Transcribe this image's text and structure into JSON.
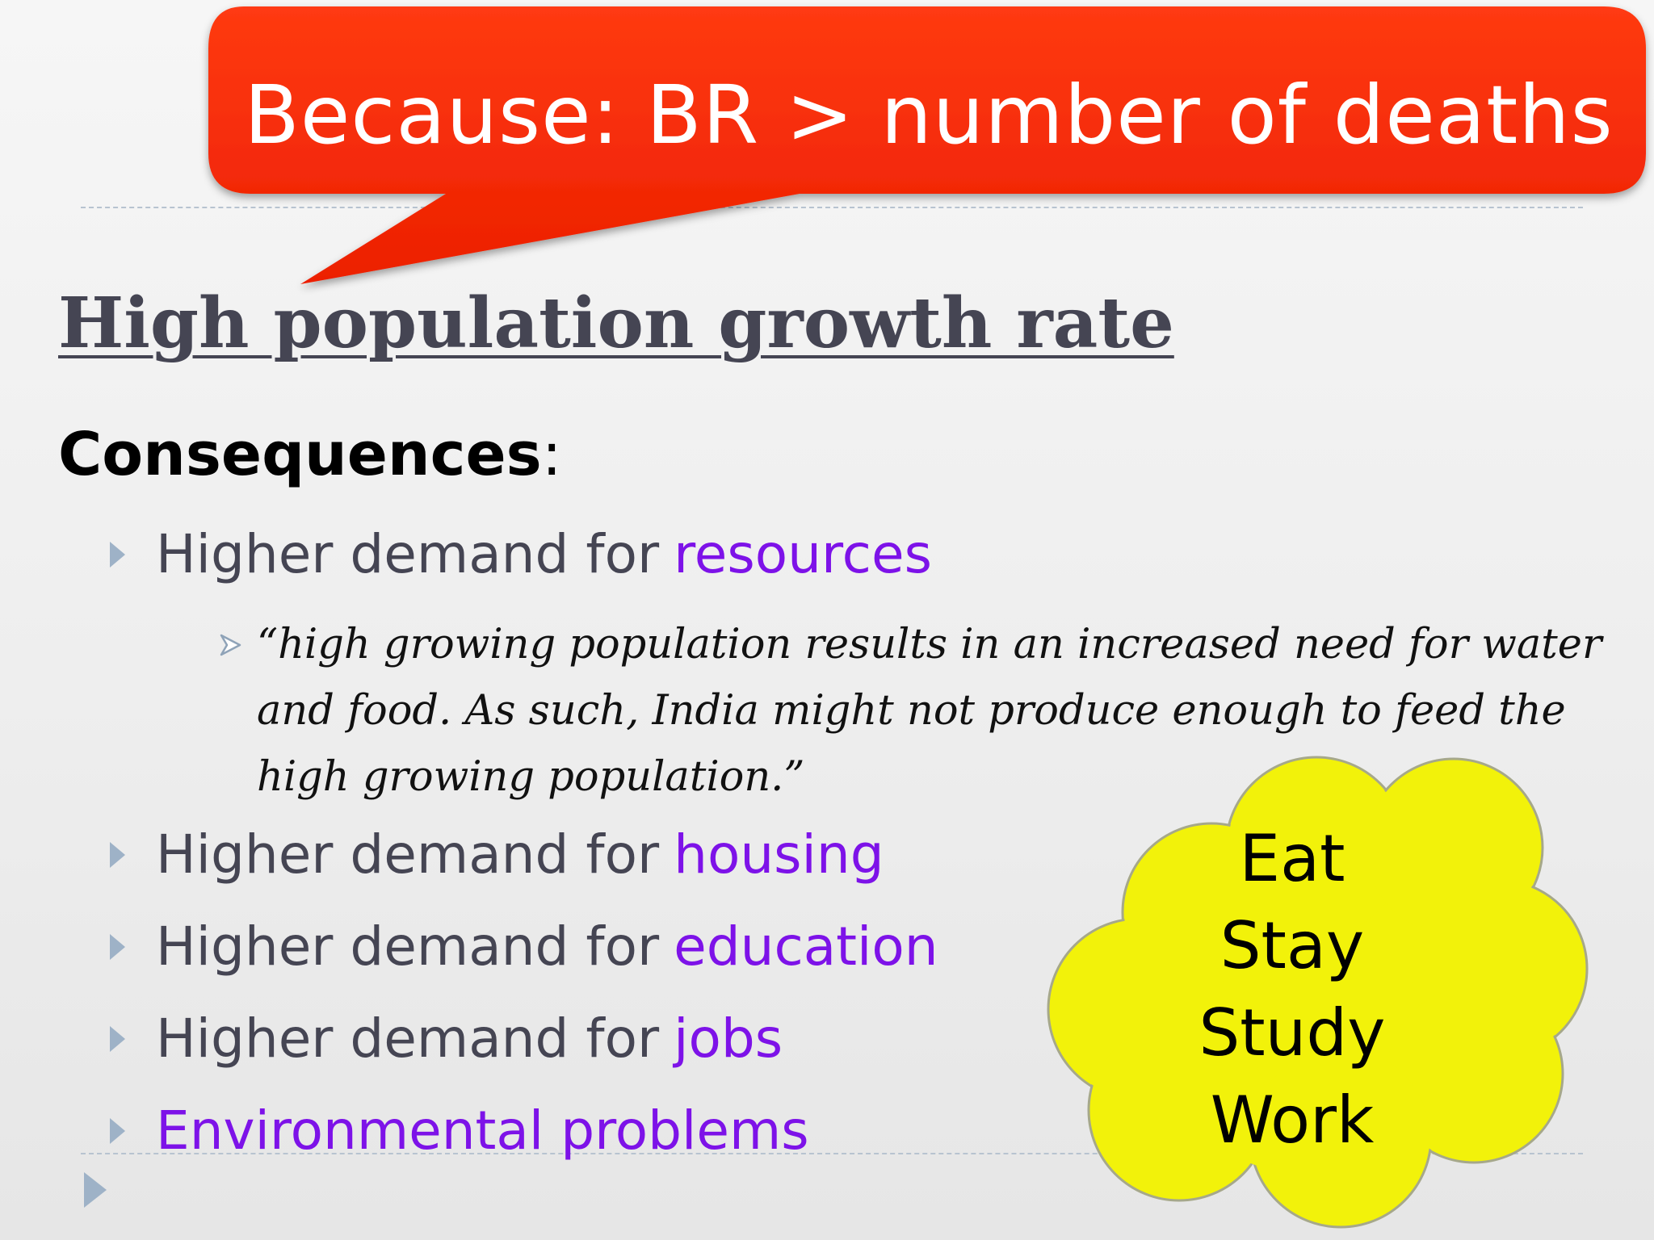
{
  "callout": {
    "text": "Because: BR > number of deaths"
  },
  "title": "High population growth rate",
  "subtitle": {
    "bold": "Consequences",
    "suffix": ":"
  },
  "bullets": [
    {
      "lead": "Higher demand for",
      "highlight": "resources"
    },
    {
      "lead": "Higher demand for",
      "highlight": "housing"
    },
    {
      "lead": "Higher demand for",
      "highlight": "education"
    },
    {
      "lead": "Higher demand for",
      "highlight": "jobs"
    },
    {
      "lead": "",
      "highlight": "Environmental problems"
    }
  ],
  "quote": {
    "lines": [
      "“high growing population results in an increased need for water",
      "and food. As such, India might not produce enough to feed the",
      "high growing population.”"
    ]
  },
  "cloud": {
    "words": [
      "Eat",
      "Stay",
      "Study",
      "Work"
    ]
  },
  "colors": {
    "callout": "#f52400",
    "highlight": "#7d12e8",
    "cloud_fill": "#f2f20a",
    "body_text": "#454553",
    "bullet_arrow": "#9eb2c7"
  },
  "icons": {
    "bullet": "triangle-right-icon",
    "sub_bullet": "arrowhead-right-icon",
    "nav": "next-slide-icon"
  }
}
